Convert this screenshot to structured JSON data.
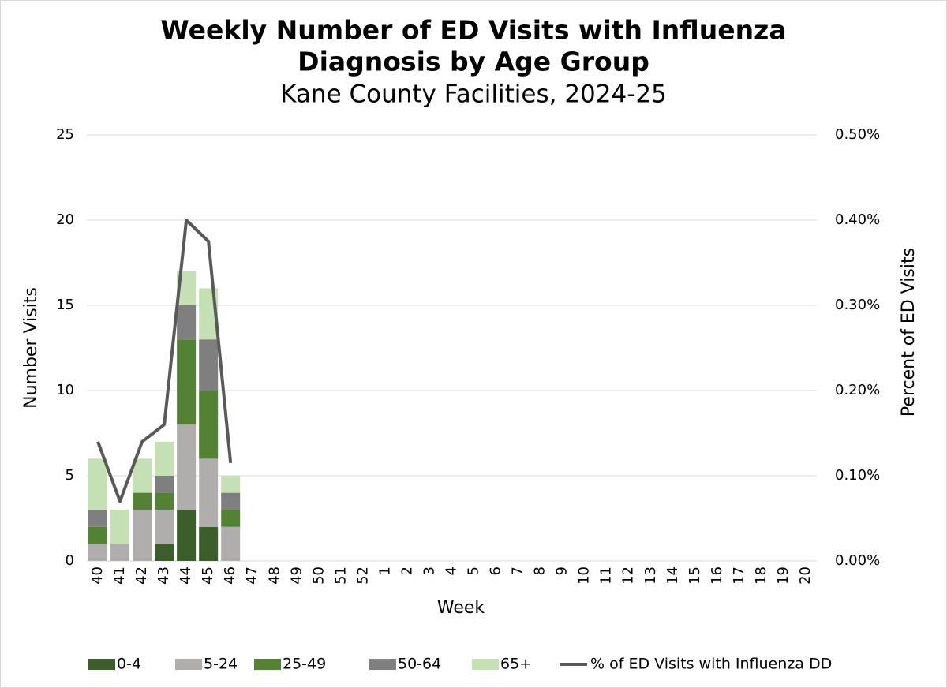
{
  "chart_data": {
    "type": "bar",
    "stacked": true,
    "title": [
      "Weekly Number of ED Visits with Influenza",
      "Diagnosis by Age Group"
    ],
    "subtitle": "Kane County Facilities, 2024-25",
    "x_label": "Week",
    "y_label": "Number Visits",
    "y2_label": "Percent of ED Visits",
    "categories": [
      "40",
      "41",
      "42",
      "43",
      "44",
      "45",
      "46",
      "47",
      "48",
      "49",
      "50",
      "51",
      "52",
      "1",
      "2",
      "3",
      "4",
      "5",
      "6",
      "7",
      "8",
      "9",
      "10",
      "11",
      "12",
      "13",
      "14",
      "15",
      "16",
      "17",
      "18",
      "19",
      "20"
    ],
    "series": [
      {
        "name": "0-4",
        "color": "#3b5e2b",
        "values": [
          0,
          0,
          0,
          1,
          3,
          2,
          0,
          null,
          null,
          null,
          null,
          null,
          null,
          null,
          null,
          null,
          null,
          null,
          null,
          null,
          null,
          null,
          null,
          null,
          null,
          null,
          null,
          null,
          null,
          null,
          null,
          null,
          null
        ]
      },
      {
        "name": "5-24",
        "color": "#b0adad",
        "values": [
          1,
          1,
          3,
          2,
          5,
          4,
          2,
          null,
          null,
          null,
          null,
          null,
          null,
          null,
          null,
          null,
          null,
          null,
          null,
          null,
          null,
          null,
          null,
          null,
          null,
          null,
          null,
          null,
          null,
          null,
          null,
          null,
          null
        ]
      },
      {
        "name": "25-49",
        "color": "#548235",
        "values": [
          1,
          0,
          1,
          1,
          5,
          4,
          1,
          null,
          null,
          null,
          null,
          null,
          null,
          null,
          null,
          null,
          null,
          null,
          null,
          null,
          null,
          null,
          null,
          null,
          null,
          null,
          null,
          null,
          null,
          null,
          null,
          null,
          null
        ]
      },
      {
        "name": "50-64",
        "color": "#7f7f7f",
        "values": [
          1,
          0,
          0,
          1,
          2,
          3,
          1,
          null,
          null,
          null,
          null,
          null,
          null,
          null,
          null,
          null,
          null,
          null,
          null,
          null,
          null,
          null,
          null,
          null,
          null,
          null,
          null,
          null,
          null,
          null,
          null,
          null,
          null
        ]
      },
      {
        "name": "65+",
        "color": "#c5e0b4",
        "values": [
          3,
          2,
          2,
          2,
          2,
          3,
          1,
          null,
          null,
          null,
          null,
          null,
          null,
          null,
          null,
          null,
          null,
          null,
          null,
          null,
          null,
          null,
          null,
          null,
          null,
          null,
          null,
          null,
          null,
          null,
          null,
          null,
          null
        ]
      },
      {
        "name": "% of ED Visits with Influenza DD",
        "type": "line",
        "axis": "y2",
        "color": "#595959",
        "values": [
          0.14,
          0.07,
          0.14,
          0.16,
          0.4,
          0.375,
          0.115,
          null,
          null,
          null,
          null,
          null,
          null,
          null,
          null,
          null,
          null,
          null,
          null,
          null,
          null,
          null,
          null,
          null,
          null,
          null,
          null,
          null,
          null,
          null,
          null,
          null,
          null
        ]
      }
    ],
    "ylim": [
      0,
      25
    ],
    "yticks": [
      0,
      5,
      10,
      15,
      20,
      25
    ],
    "y2lim": [
      0,
      0.5
    ],
    "y2ticks": [
      {
        "value": 0,
        "label": "0.00%"
      },
      {
        "value": 0.1,
        "label": "0.10%"
      },
      {
        "value": 0.2,
        "label": "0.20%"
      },
      {
        "value": 0.3,
        "label": "0.30%"
      },
      {
        "value": 0.4,
        "label": "0.40%"
      },
      {
        "value": 0.5,
        "label": "0.50%"
      }
    ],
    "grid": true,
    "legend": "bottom"
  }
}
